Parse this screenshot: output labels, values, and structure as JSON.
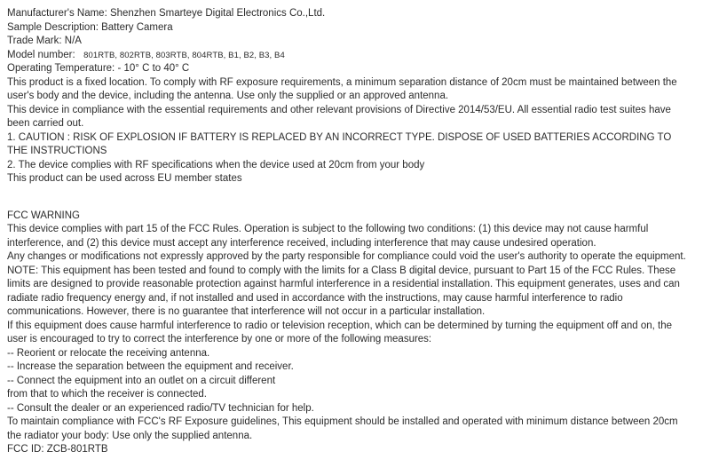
{
  "manufacturer": {
    "label": "Manufacturer's Name: ",
    "value": "Shenzhen Smarteye Digital Electronics Co.,Ltd."
  },
  "sample": {
    "label": "Sample Description: ",
    "value": "Battery Camera"
  },
  "trademark": {
    "label": "Trade Mark: ",
    "value": "N/A"
  },
  "model": {
    "label": "Model number:  ",
    "value": "801RTB, 802RTB, 803RTB, 804RTB, B1, B2, B3, B4"
  },
  "optemp": {
    "label": "Operating Temperature: ",
    "value": " ‑ 10° C to 40° C"
  },
  "body1": "This product is a fixed location. To comply with RF exposure requirements, a minimum separation distance of 20cm must be maintained between the user's body and the device, including the antenna. Use only the supplied or an approved antenna.",
  "body2": "This device in compliance with the essential requirements and other relevant provisions of Directive 2014/53/EU. All essential radio test suites have been carried out.",
  "body3": "1. CAUTION : RISK OF EXPLOSION IF BATTERY IS REPLACED BY AN INCORRECT TYPE. DISPOSE OF USED BATTERIES ACCORDING TO THE INSTRUCTIONS",
  "body4": "2. The device complies with RF specifications when the device used at 20cm from your body",
  "body5": "This product can be used across EU member states",
  "fcc_heading": "FCC WARNING",
  "fcc1": "This device complies with part 15 of the FCC Rules. Operation is subject to the following two conditions: (1) this device may not cause harmful interference, and (2) this device must accept any interference received, including interference that may cause undesired operation.",
  "fcc2": "Any changes or modifications not expressly approved by the party responsible for compliance could void the user's authority to operate the equipment.",
  "fcc3": "NOTE: This equipment has been tested and found to comply with the limits for a Class B digital device, pursuant to Part 15 of the FCC Rules. These limits are designed to provide reasonable protection against harmful interference in a residential installation. This equipment generates, uses and can",
  "fcc4": "radiate radio frequency energy and, if not installed and used in accordance with the instructions, may cause harmful interference to radio communications. However, there is no guarantee that interference will not occur in a particular installation.",
  "fcc5": "If this equipment does cause harmful interference to radio or television reception, which can be determined by turning the equipment off and on, the user is encouraged to try to correct the interference by one or more of the following measures:",
  "fcc6": "-- Reorient or relocate the receiving antenna.",
  "fcc7": "-- Increase the separation between the equipment and receiver.",
  "fcc8": "-- Connect the equipment into an outlet on a circuit different",
  "fcc9": "from that to which the receiver is connected.",
  "fcc10": "-- Consult the dealer or an experienced radio/TV technician for help.",
  "fcc11": "To maintain compliance with FCC's RF Exposure guidelines, This equipment should be installed and operated with minimum distance between 20cm the radiator your body: Use only the supplied antenna.",
  "fccid": "FCC ID: ZCB-801RTB"
}
